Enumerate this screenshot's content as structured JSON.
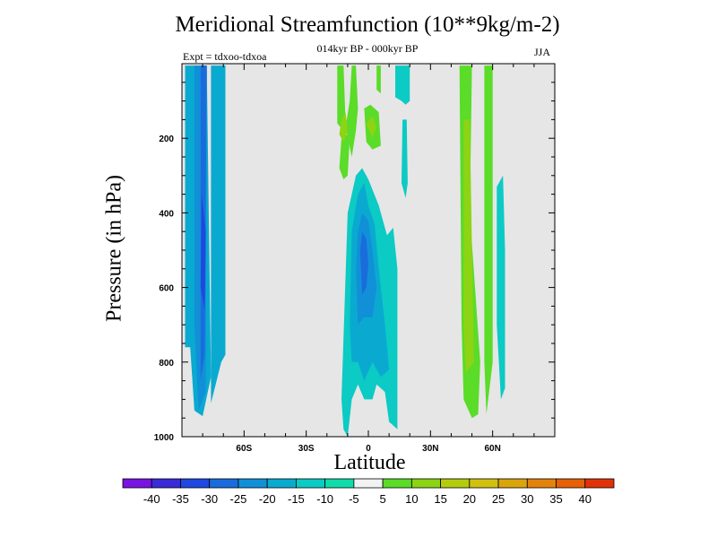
{
  "chart_data": {
    "type": "contour",
    "title": "Meridional Streamfunction (10**9kg/m-2)",
    "subtitle": "014kyr BP - 000kyr BP",
    "experiment": "Expt = tdxoo-tdxoa",
    "season": "JJA",
    "xlabel": "Latitude",
    "ylabel": "Pressure (in hPa)",
    "xlim": [
      -90,
      90
    ],
    "ylim": [
      1000,
      0
    ],
    "yreversed": true,
    "xticks": [
      {
        "value": -60,
        "label": "60S"
      },
      {
        "value": -30,
        "label": "30S"
      },
      {
        "value": 0,
        "label": "0"
      },
      {
        "value": 30,
        "label": "30N"
      },
      {
        "value": 60,
        "label": "60N"
      }
    ],
    "yticks": [
      {
        "value": 200,
        "label": "200"
      },
      {
        "value": 400,
        "label": "400"
      },
      {
        "value": 600,
        "label": "600"
      },
      {
        "value": 800,
        "label": "800"
      },
      {
        "value": 1000,
        "label": "1000"
      }
    ],
    "background_color": "#e6e6e6",
    "colorbar": {
      "labels": [
        "-40",
        "-35",
        "-30",
        "-25",
        "-20",
        "-15",
        "-10",
        "-5",
        "5",
        "10",
        "15",
        "20",
        "25",
        "30",
        "35",
        "40"
      ],
      "colors": [
        "#7a14e0",
        "#3a2bd8",
        "#1f48e0",
        "#1a6cdc",
        "#1190d8",
        "#0aaad0",
        "#0ccac4",
        "#10dcaa",
        "#f2f2f2",
        "#5adc28",
        "#8cd414",
        "#b4cc10",
        "#d2c010",
        "#dca40c",
        "#e2840c",
        "#e66008",
        "#e03208"
      ]
    },
    "regions": [
      {
        "level": "-15",
        "points": [
          [
            -88.5,
            5
          ],
          [
            -78,
            5
          ],
          [
            -76,
            840
          ],
          [
            -80,
            945
          ],
          [
            -84,
            930
          ],
          [
            -86,
            760
          ],
          [
            -88.5,
            760
          ]
        ]
      },
      {
        "level": "-20",
        "points": [
          [
            -84,
            5
          ],
          [
            -78,
            5
          ],
          [
            -78.5,
            880
          ],
          [
            -82,
            930
          ],
          [
            -84,
            700
          ]
        ]
      },
      {
        "level": "-25",
        "points": [
          [
            -81,
            5
          ],
          [
            -78,
            5
          ],
          [
            -79,
            780
          ],
          [
            -81,
            850
          ]
        ]
      },
      {
        "level": "-30",
        "points": [
          [
            -80.5,
            350
          ],
          [
            -78.5,
            450
          ],
          [
            -79,
            660
          ],
          [
            -81,
            600
          ]
        ]
      },
      {
        "level": "-15",
        "points": [
          [
            -76,
            5
          ],
          [
            -69,
            5
          ],
          [
            -69,
            780
          ],
          [
            -71,
            800
          ],
          [
            -76,
            910
          ]
        ]
      },
      {
        "level": "-10",
        "points": [
          [
            -12,
            980
          ],
          [
            -13,
            900
          ],
          [
            -10,
            400
          ],
          [
            -6,
            300
          ],
          [
            -3,
            280
          ],
          [
            0,
            310
          ],
          [
            5,
            380
          ],
          [
            9,
            460
          ],
          [
            12,
            440
          ],
          [
            14,
            550
          ],
          [
            14,
            980
          ],
          [
            10,
            960
          ],
          [
            8,
            880
          ],
          [
            4,
            860
          ],
          [
            2,
            900
          ],
          [
            -2,
            900
          ],
          [
            -5,
            860
          ],
          [
            -8,
            900
          ],
          [
            -10,
            1000
          ]
        ]
      },
      {
        "level": "-15",
        "points": [
          [
            -8,
            800
          ],
          [
            -9,
            700
          ],
          [
            -8,
            450
          ],
          [
            -5,
            350
          ],
          [
            -2,
            320
          ],
          [
            0,
            380
          ],
          [
            3,
            430
          ],
          [
            5,
            550
          ],
          [
            8,
            700
          ],
          [
            10,
            820
          ],
          [
            6,
            840
          ],
          [
            2,
            800
          ],
          [
            -2,
            850
          ],
          [
            -5,
            800
          ]
        ]
      },
      {
        "level": "-20",
        "points": [
          [
            -5,
            700
          ],
          [
            -6,
            550
          ],
          [
            -5,
            450
          ],
          [
            -3,
            400
          ],
          [
            0,
            420
          ],
          [
            2,
            500
          ],
          [
            4,
            600
          ],
          [
            2,
            680
          ],
          [
            -2,
            680
          ]
        ]
      },
      {
        "level": "-25",
        "points": [
          [
            -3,
            620
          ],
          [
            -4,
            500
          ],
          [
            -3,
            450
          ],
          [
            -1,
            470
          ],
          [
            0,
            540
          ],
          [
            -1,
            600
          ]
        ]
      },
      {
        "level": "5",
        "points": [
          [
            -15,
            5
          ],
          [
            -12,
            5
          ],
          [
            -11,
            160
          ],
          [
            -13,
            200
          ],
          [
            -14,
            280
          ],
          [
            -12,
            310
          ],
          [
            -10,
            300
          ],
          [
            -9,
            200
          ],
          [
            -15,
            160
          ]
        ]
      },
      {
        "level": "5",
        "points": [
          [
            -8,
            5
          ],
          [
            -6,
            5
          ],
          [
            -5,
            120
          ],
          [
            -6,
            180
          ],
          [
            -8,
            250
          ],
          [
            -11,
            170
          ],
          [
            -9,
            100
          ]
        ]
      },
      {
        "level": "5",
        "points": [
          [
            -2,
            120
          ],
          [
            1,
            110
          ],
          [
            5,
            130
          ],
          [
            6,
            220
          ],
          [
            2,
            230
          ],
          [
            -1,
            210
          ]
        ]
      },
      {
        "level": "5",
        "points": [
          [
            4,
            5
          ],
          [
            6,
            5
          ],
          [
            6,
            80
          ],
          [
            4,
            70
          ]
        ]
      },
      {
        "level": "10",
        "points": [
          [
            -13,
            150
          ],
          [
            -11,
            130
          ],
          [
            -10,
            180
          ],
          [
            -12,
            210
          ],
          [
            -14,
            190
          ]
        ]
      },
      {
        "level": "10",
        "points": [
          [
            -1,
            160
          ],
          [
            2,
            140
          ],
          [
            4,
            170
          ],
          [
            2,
            200
          ]
        ]
      },
      {
        "level": "-10",
        "points": [
          [
            13,
            5
          ],
          [
            20,
            5
          ],
          [
            20,
            100
          ],
          [
            18,
            110
          ],
          [
            16,
            100
          ],
          [
            13,
            90
          ]
        ]
      },
      {
        "level": "-10",
        "points": [
          [
            16.5,
            150
          ],
          [
            18.5,
            150
          ],
          [
            19,
            320
          ],
          [
            18,
            360
          ],
          [
            16,
            320
          ]
        ]
      },
      {
        "level": "5",
        "points": [
          [
            44,
            5
          ],
          [
            50,
            5
          ],
          [
            49,
            400
          ],
          [
            54,
            800
          ],
          [
            53,
            940
          ],
          [
            50,
            950
          ],
          [
            46,
            900
          ],
          [
            45,
            700
          ]
        ]
      },
      {
        "level": "10",
        "points": [
          [
            46,
            150
          ],
          [
            49,
            150
          ],
          [
            50,
            500
          ],
          [
            51,
            800
          ],
          [
            47,
            830
          ],
          [
            46,
            700
          ]
        ]
      },
      {
        "level": "5",
        "points": [
          [
            56,
            5
          ],
          [
            60,
            5
          ],
          [
            60,
            800
          ],
          [
            57,
            940
          ],
          [
            56,
            800
          ]
        ]
      },
      {
        "level": "-10",
        "points": [
          [
            62,
            330
          ],
          [
            65,
            300
          ],
          [
            66,
            500
          ],
          [
            66,
            870
          ],
          [
            64,
            900
          ],
          [
            62,
            700
          ]
        ]
      }
    ]
  }
}
